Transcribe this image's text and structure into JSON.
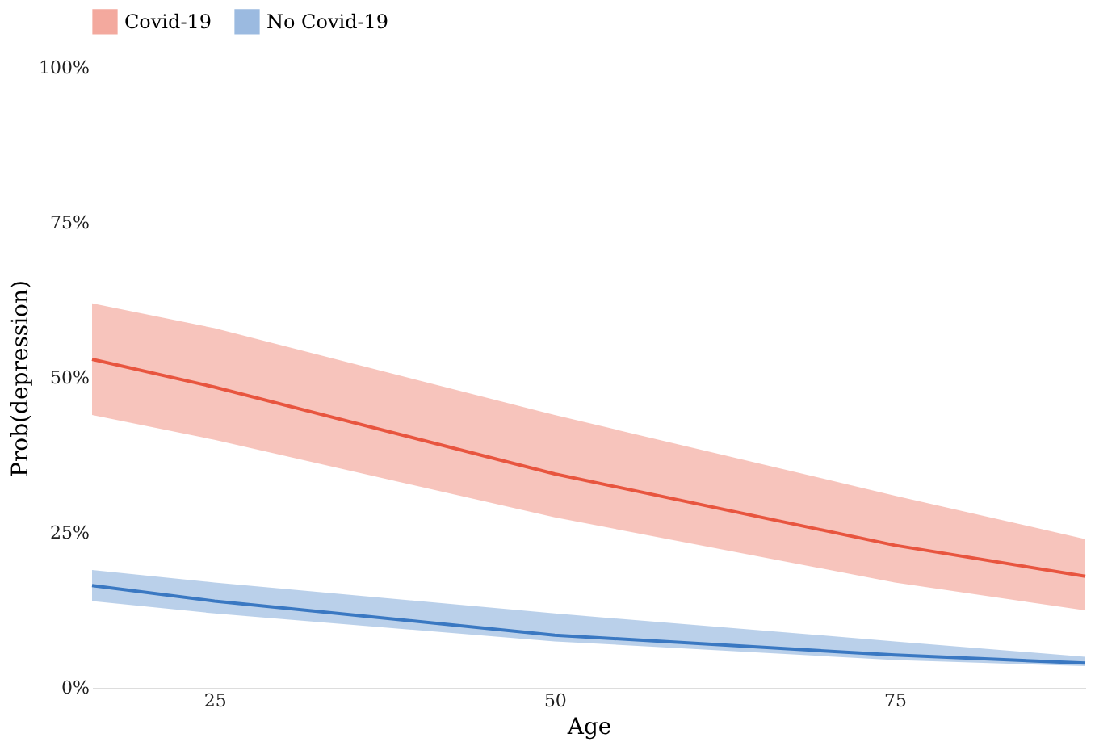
{
  "chart_data": {
    "type": "line",
    "xlabel": "Age",
    "ylabel": "Prob(depression)",
    "x": [
      16,
      25,
      50,
      75,
      89
    ],
    "series": [
      {
        "name": "Covid-19",
        "color": "#e8553f",
        "values": [
          53,
          48.5,
          34.5,
          23,
          18
        ],
        "lower": [
          44,
          40,
          27.5,
          17,
          12.5
        ],
        "upper": [
          62,
          58,
          44,
          31,
          24
        ]
      },
      {
        "name": "No Covid-19",
        "color": "#3a78c2",
        "values": [
          16.5,
          14,
          8.5,
          5.3,
          4
        ],
        "lower": [
          14,
          12,
          7.5,
          4.5,
          3.5
        ],
        "upper": [
          19,
          17,
          12,
          7.5,
          5
        ]
      }
    ],
    "xlim": [
      16,
      89
    ],
    "xticks": [
      25,
      50,
      75
    ],
    "ylim": [
      0,
      100
    ],
    "yticks": [
      {
        "value": 0,
        "label": "0%"
      },
      {
        "value": 25,
        "label": "25%"
      },
      {
        "value": 50,
        "label": "50%"
      },
      {
        "value": 75,
        "label": "75%"
      },
      {
        "value": 100,
        "label": "100%"
      }
    ],
    "grid": false,
    "legend": "top",
    "line_style": "solid",
    "marker": "none"
  }
}
